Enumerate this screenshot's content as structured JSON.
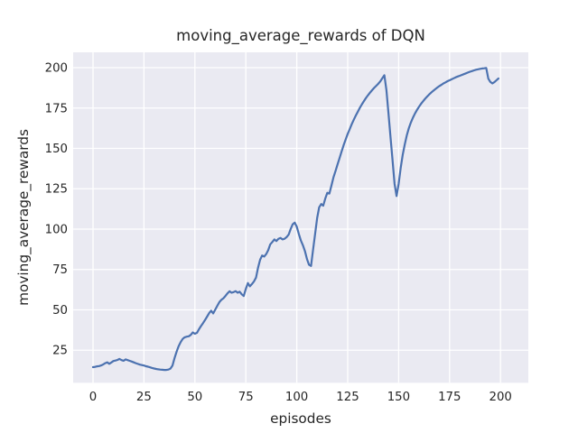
{
  "figure": {
    "title": "moving_average_rewards of DQN",
    "xlabel": "episodes",
    "ylabel": "moving_average_rewards"
  },
  "chart_data": {
    "type": "line",
    "title": "moving_average_rewards of DQN",
    "xlabel": "episodes",
    "ylabel": "moving_average_rewards",
    "x_start": 0,
    "x_step": 1,
    "series": [
      {
        "name": "moving_average_rewards",
        "color": "#4c72b0",
        "values": [
          14.5,
          14.7,
          15.0,
          15.2,
          15.6,
          16.2,
          17.0,
          17.5,
          16.6,
          17.4,
          18.3,
          18.6,
          19.0,
          19.6,
          18.9,
          18.5,
          19.3,
          18.9,
          18.4,
          18.0,
          17.5,
          17.0,
          16.5,
          16.1,
          15.8,
          15.5,
          15.1,
          14.8,
          14.4,
          14.0,
          13.7,
          13.4,
          13.2,
          13.0,
          12.9,
          12.8,
          12.8,
          13.0,
          13.6,
          15.5,
          20.0,
          24.0,
          27.5,
          30.0,
          32.0,
          33.0,
          33.4,
          33.6,
          34.5,
          36.0,
          35.2,
          35.8,
          38.0,
          40.0,
          41.8,
          43.8,
          45.8,
          48.0,
          49.5,
          47.8,
          50.2,
          52.5,
          54.8,
          56.2,
          57.2,
          58.6,
          60.2,
          61.5,
          60.6,
          61.0,
          61.6,
          60.6,
          61.2,
          59.6,
          58.6,
          63.0,
          66.6,
          64.6,
          66.0,
          67.6,
          70.0,
          76.0,
          81.0,
          83.6,
          83.0,
          84.6,
          87.0,
          90.6,
          92.0,
          93.6,
          92.6,
          94.0,
          94.6,
          93.6,
          94.0,
          95.0,
          96.6,
          100.0,
          103.0,
          104.0,
          101.5,
          97.0,
          93.0,
          90.0,
          86.5,
          81.5,
          78.0,
          77.2,
          87.0,
          97.0,
          107.0,
          113.5,
          115.5,
          114.5,
          119.0,
          122.5,
          122.0,
          127.0,
          132.0,
          136.0,
          140.0,
          144.0,
          148.0,
          152.0,
          155.5,
          159.0,
          162.0,
          165.0,
          167.8,
          170.4,
          172.8,
          175.2,
          177.4,
          179.4,
          181.3,
          183.0,
          184.6,
          186.1,
          187.5,
          188.8,
          190.0,
          191.5,
          193.5,
          195.3,
          186.0,
          172.0,
          157.0,
          143.0,
          128.0,
          120.5,
          128.0,
          138.0,
          146.0,
          152.5,
          158.0,
          162.5,
          166.0,
          169.0,
          171.6,
          173.8,
          175.8,
          177.6,
          179.2,
          180.7,
          182.1,
          183.4,
          184.6,
          185.7,
          186.7,
          187.7,
          188.6,
          189.4,
          190.2,
          190.9,
          191.6,
          192.2,
          192.8,
          193.4,
          194.0,
          194.5,
          195.0,
          195.5,
          196.0,
          196.5,
          197.0,
          197.5,
          197.9,
          198.3,
          198.7,
          199.0,
          199.3,
          199.5,
          199.6,
          199.8,
          193.2,
          191.2,
          190.2,
          191.0,
          192.2,
          193.3
        ]
      }
    ],
    "x_ticks": [
      0,
      25,
      50,
      75,
      100,
      125,
      150,
      175,
      200
    ],
    "y_ticks": [
      25,
      50,
      75,
      100,
      125,
      150,
      175,
      200
    ],
    "xlim": [
      -9.75,
      213.65
    ],
    "ylim": [
      4.85,
      209.5
    ],
    "grid": true,
    "legend": false,
    "style": {
      "fig_bg": "#ffffff",
      "axes_bg": "#eaeaf2",
      "grid_color": "#ffffff",
      "text_color": "#262626",
      "line_color": "#4c72b0"
    }
  }
}
